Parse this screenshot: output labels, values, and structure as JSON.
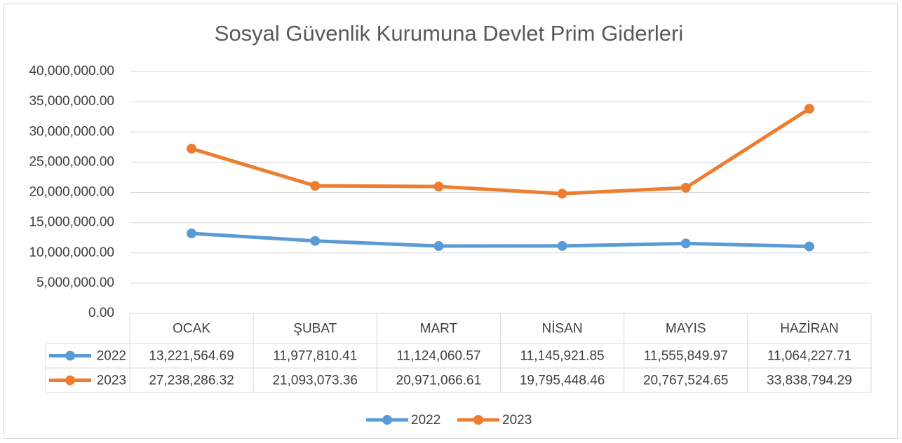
{
  "chart_data": {
    "type": "line",
    "title": "Sosyal Güvenlik Kurumuna Devlet Prim Giderleri",
    "categories": [
      "OCAK",
      "ŞUBAT",
      "MART",
      "NİSAN",
      "MAYIS",
      "HAZİRAN"
    ],
    "series": [
      {
        "name": "2022",
        "color": "#5b9bd5",
        "values": [
          13221564.69,
          11977810.41,
          11124060.57,
          11145921.85,
          11555849.97,
          11064227.71
        ],
        "value_labels": [
          "13,221,564.69",
          "11,977,810.41",
          "11,124,060.57",
          "11,145,921.85",
          "11,555,849.97",
          "11,064,227.71"
        ]
      },
      {
        "name": "2023",
        "color": "#ed7d31",
        "values": [
          27238286.32,
          21093073.36,
          20971066.61,
          19795448.46,
          20767524.65,
          33838794.29
        ],
        "value_labels": [
          "27,238,286.32",
          "21,093,073.36",
          "20,971,066.61",
          "19,795,448.46",
          "20,767,524.65",
          "33,838,794.29"
        ]
      }
    ],
    "ylim": [
      0,
      40000000
    ],
    "yticks": [
      {
        "value": 0,
        "label": "0.00"
      },
      {
        "value": 5000000,
        "label": "5,000,000.00"
      },
      {
        "value": 10000000,
        "label": "10,000,000.00"
      },
      {
        "value": 15000000,
        "label": "15,000,000.00"
      },
      {
        "value": 20000000,
        "label": "20,000,000.00"
      },
      {
        "value": 25000000,
        "label": "25,000,000.00"
      },
      {
        "value": 30000000,
        "label": "30,000,000.00"
      },
      {
        "value": 35000000,
        "label": "35,000,000.00"
      },
      {
        "value": 40000000,
        "label": "40,000,000.00"
      }
    ],
    "grid": true,
    "legend": "bottom"
  }
}
